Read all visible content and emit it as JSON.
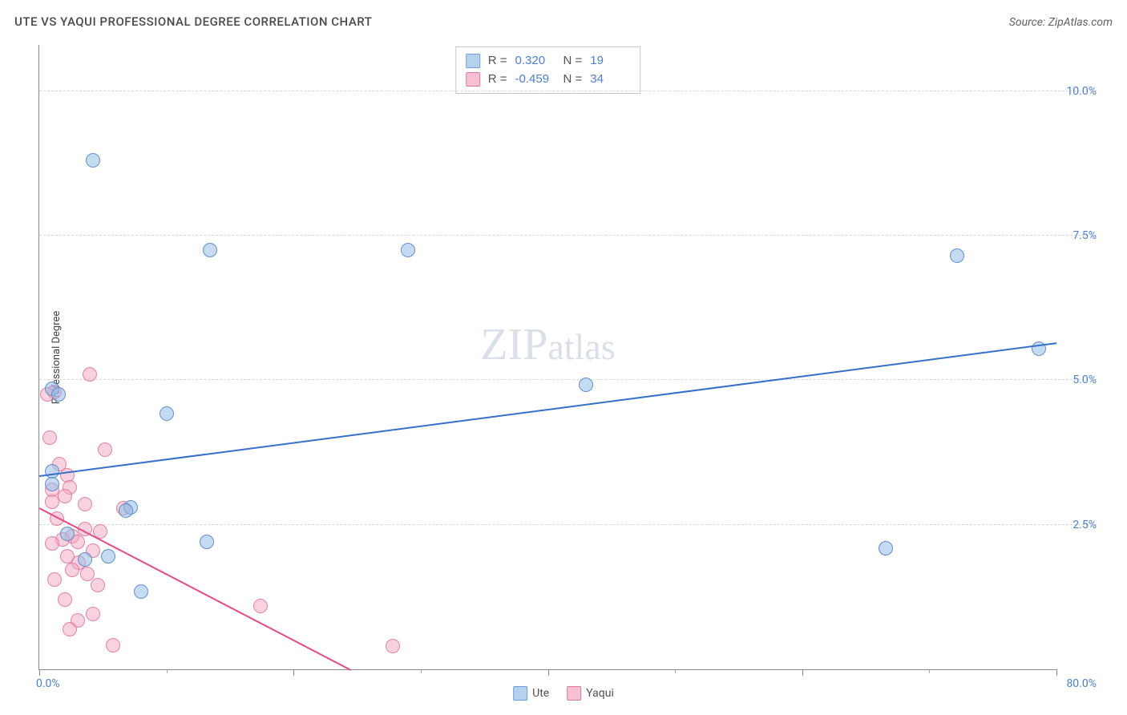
{
  "title": "UTE VS YAQUI PROFESSIONAL DEGREE CORRELATION CHART",
  "source": "Source: ZipAtlas.com",
  "watermark_main": "ZIP",
  "watermark_sub": "atlas",
  "chart": {
    "type": "scatter",
    "xlim": [
      0,
      80
    ],
    "ylim": [
      0,
      10.8
    ],
    "x_origin_label": "0.0%",
    "x_end_label": "80.0%",
    "y_ticks": [
      2.5,
      5.0,
      7.5,
      10.0
    ],
    "y_tick_labels": [
      "2.5%",
      "5.0%",
      "7.5%",
      "10.0%"
    ],
    "x_major_ticks": [
      0,
      20,
      40,
      60,
      80
    ],
    "x_minor_ticks": [
      10,
      30,
      50,
      70
    ],
    "y_axis_title": "Professional Degree",
    "grid_color": "#d8d8d8",
    "background": "#ffffff",
    "marker_radius": 9,
    "series": {
      "ute": {
        "label": "Ute",
        "color_fill": "rgba(149,189,230,0.55)",
        "color_stroke": "rgba(80,130,200,0.85)",
        "trend_color": "#3470cc",
        "R": "0.320",
        "N": "19",
        "trend": {
          "x1": 0,
          "y1": 3.35,
          "x2": 80,
          "y2": 5.65
        },
        "points": [
          {
            "x": 4.2,
            "y": 8.8
          },
          {
            "x": 13.4,
            "y": 7.25
          },
          {
            "x": 29.0,
            "y": 7.25
          },
          {
            "x": 72.2,
            "y": 7.15
          },
          {
            "x": 78.6,
            "y": 5.55
          },
          {
            "x": 43.0,
            "y": 4.92
          },
          {
            "x": 1.0,
            "y": 4.85
          },
          {
            "x": 1.5,
            "y": 4.75
          },
          {
            "x": 10.0,
            "y": 4.42
          },
          {
            "x": 1.0,
            "y": 3.42
          },
          {
            "x": 7.2,
            "y": 2.8
          },
          {
            "x": 6.8,
            "y": 2.75
          },
          {
            "x": 13.2,
            "y": 2.2
          },
          {
            "x": 66.6,
            "y": 2.1
          },
          {
            "x": 5.4,
            "y": 1.95
          },
          {
            "x": 3.6,
            "y": 1.9
          },
          {
            "x": 8.0,
            "y": 1.35
          },
          {
            "x": 1.0,
            "y": 3.2
          },
          {
            "x": 2.2,
            "y": 2.35
          }
        ]
      },
      "yaqui": {
        "label": "Yaqui",
        "color_fill": "rgba(242,165,190,0.5)",
        "color_stroke": "rgba(225,110,150,0.8)",
        "trend_color": "#e94b7d",
        "R": "-0.459",
        "N": "34",
        "trend": {
          "x1": 0,
          "y1": 2.8,
          "x2": 24.5,
          "y2": 0
        },
        "points": [
          {
            "x": 4.0,
            "y": 5.1
          },
          {
            "x": 1.2,
            "y": 4.8
          },
          {
            "x": 0.6,
            "y": 4.75
          },
          {
            "x": 0.8,
            "y": 4.0
          },
          {
            "x": 5.2,
            "y": 3.8
          },
          {
            "x": 1.6,
            "y": 3.55
          },
          {
            "x": 2.2,
            "y": 3.35
          },
          {
            "x": 2.4,
            "y": 3.15
          },
          {
            "x": 1.0,
            "y": 3.1
          },
          {
            "x": 2.0,
            "y": 3.0
          },
          {
            "x": 3.6,
            "y": 2.85
          },
          {
            "x": 6.6,
            "y": 2.78
          },
          {
            "x": 1.4,
            "y": 2.6
          },
          {
            "x": 3.6,
            "y": 2.42
          },
          {
            "x": 4.8,
            "y": 2.38
          },
          {
            "x": 2.6,
            "y": 2.3
          },
          {
            "x": 1.8,
            "y": 2.25
          },
          {
            "x": 3.0,
            "y": 2.2
          },
          {
            "x": 1.0,
            "y": 2.18
          },
          {
            "x": 4.2,
            "y": 2.05
          },
          {
            "x": 2.2,
            "y": 1.95
          },
          {
            "x": 3.1,
            "y": 1.85
          },
          {
            "x": 2.6,
            "y": 1.72
          },
          {
            "x": 3.8,
            "y": 1.65
          },
          {
            "x": 1.2,
            "y": 1.55
          },
          {
            "x": 4.6,
            "y": 1.45
          },
          {
            "x": 2.0,
            "y": 1.2
          },
          {
            "x": 17.4,
            "y": 1.1
          },
          {
            "x": 4.2,
            "y": 0.95
          },
          {
            "x": 3.0,
            "y": 0.85
          },
          {
            "x": 2.4,
            "y": 0.7
          },
          {
            "x": 5.8,
            "y": 0.42
          },
          {
            "x": 27.8,
            "y": 0.4
          },
          {
            "x": 1.0,
            "y": 2.9
          }
        ]
      }
    }
  },
  "stats_legend": {
    "r_label": "R  =",
    "n_label": "N  ="
  }
}
